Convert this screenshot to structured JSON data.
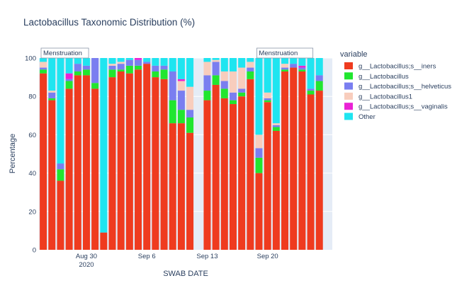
{
  "chart_data": {
    "type": "bar",
    "barmode": "stack",
    "title": "Lactobacillus Taxonomic Distribution (%)",
    "xlabel": "SWAB DATE",
    "ylabel": "Percentage",
    "ylim": [
      0,
      100
    ],
    "y_ticks": [
      0,
      20,
      40,
      60,
      80,
      100
    ],
    "x_range": [
      "2020-08-25",
      "2020-09-27"
    ],
    "x_ticks": [
      {
        "date": "2020-08-30",
        "label": "Aug 30",
        "sublabel": "2020"
      },
      {
        "date": "2020-09-06",
        "label": "Sep 6",
        "sublabel": ""
      },
      {
        "date": "2020-09-13",
        "label": "Sep 13",
        "sublabel": ""
      },
      {
        "date": "2020-09-20",
        "label": "Sep 20",
        "sublabel": ""
      }
    ],
    "legend": {
      "title": "variable",
      "position": "right"
    },
    "series": [
      {
        "name": "g__Lactobacillus;s__iners",
        "color": "#ef3b1f"
      },
      {
        "name": "g__Lactobacillus",
        "color": "#21e62f"
      },
      {
        "name": "g__Lactobacillus;s__helveticus",
        "color": "#7a7ef0"
      },
      {
        "name": "g__Lactobacillus1",
        "color": "#f8cdbd"
      },
      {
        "name": "g__Lactobacillus;s__vaginalis",
        "color": "#ea22d5"
      },
      {
        "name": "Other",
        "color": "#1fe5f0"
      }
    ],
    "bars": [
      {
        "x": "2020-08-25",
        "values": [
          92,
          2,
          1,
          3,
          0,
          2
        ]
      },
      {
        "x": "2020-08-26",
        "values": [
          78,
          1,
          3,
          1,
          0,
          17
        ]
      },
      {
        "x": "2020-08-27",
        "values": [
          36,
          6,
          3,
          0,
          0,
          55
        ]
      },
      {
        "x": "2020-08-28",
        "values": [
          84,
          4,
          1,
          0,
          3,
          8
        ]
      },
      {
        "x": "2020-08-29",
        "values": [
          91,
          2,
          4,
          0,
          0,
          3
        ]
      },
      {
        "x": "2020-08-30",
        "values": [
          91,
          3,
          2,
          0,
          0,
          4
        ]
      },
      {
        "x": "2020-08-31",
        "values": [
          84,
          3,
          13,
          0,
          0,
          0
        ]
      },
      {
        "x": "2020-09-01",
        "values": [
          9,
          0,
          0,
          0,
          0,
          91
        ]
      },
      {
        "x": "2020-09-02",
        "values": [
          90,
          4,
          2,
          1,
          0,
          3
        ]
      },
      {
        "x": "2020-09-03",
        "values": [
          93,
          1,
          3,
          1,
          0,
          2
        ]
      },
      {
        "x": "2020-09-04",
        "values": [
          92,
          4,
          3,
          0,
          0,
          1
        ]
      },
      {
        "x": "2020-09-05",
        "values": [
          94,
          2,
          3,
          0,
          1,
          0
        ]
      },
      {
        "x": "2020-09-06",
        "values": [
          97,
          0,
          1,
          0,
          0,
          2
        ]
      },
      {
        "x": "2020-09-07",
        "values": [
          90,
          3,
          3,
          0,
          0,
          4
        ]
      },
      {
        "x": "2020-09-08",
        "values": [
          89,
          5,
          2,
          0,
          0,
          4
        ]
      },
      {
        "x": "2020-09-09",
        "values": [
          66,
          12,
          15,
          0,
          0,
          7
        ]
      },
      {
        "x": "2020-09-10",
        "values": [
          66,
          7,
          10,
          5,
          1,
          11
        ]
      },
      {
        "x": "2020-09-11",
        "values": [
          61,
          8,
          4,
          12,
          0,
          15
        ]
      },
      {
        "x": "2020-09-13",
        "values": [
          78,
          5,
          8,
          7,
          0,
          2
        ]
      },
      {
        "x": "2020-09-14",
        "values": [
          86,
          5,
          7,
          1,
          0,
          1
        ]
      },
      {
        "x": "2020-09-15",
        "values": [
          79,
          5,
          4,
          5,
          0,
          7
        ]
      },
      {
        "x": "2020-09-16",
        "values": [
          76,
          2,
          4,
          11,
          0,
          7
        ]
      },
      {
        "x": "2020-09-17",
        "values": [
          80,
          2,
          2,
          11,
          0,
          5
        ]
      },
      {
        "x": "2020-09-18",
        "values": [
          89,
          4,
          2,
          3,
          0,
          2
        ]
      },
      {
        "x": "2020-09-19",
        "values": [
          40,
          8,
          5,
          7,
          0,
          40
        ]
      },
      {
        "x": "2020-09-20",
        "values": [
          77,
          1,
          1,
          3,
          0,
          18
        ]
      },
      {
        "x": "2020-09-21",
        "values": [
          62,
          2,
          1,
          1,
          0,
          34
        ]
      },
      {
        "x": "2020-09-22",
        "values": [
          93,
          1,
          1,
          2,
          0,
          3
        ]
      },
      {
        "x": "2020-09-23",
        "values": [
          95,
          0,
          2,
          0,
          0,
          3
        ]
      },
      {
        "x": "2020-09-24",
        "values": [
          93,
          1,
          1,
          0,
          1,
          4
        ]
      },
      {
        "x": "2020-09-25",
        "values": [
          81,
          2,
          1,
          0,
          0,
          16
        ]
      },
      {
        "x": "2020-09-26",
        "values": [
          83,
          5,
          3,
          0,
          0,
          9
        ]
      }
    ],
    "annotations": [
      {
        "text": "Menstruation",
        "x_start": "2020-08-25",
        "x_end": "2020-08-30"
      },
      {
        "text": "Menstruation",
        "x_start": "2020-09-19",
        "x_end": "2020-09-25"
      }
    ]
  }
}
